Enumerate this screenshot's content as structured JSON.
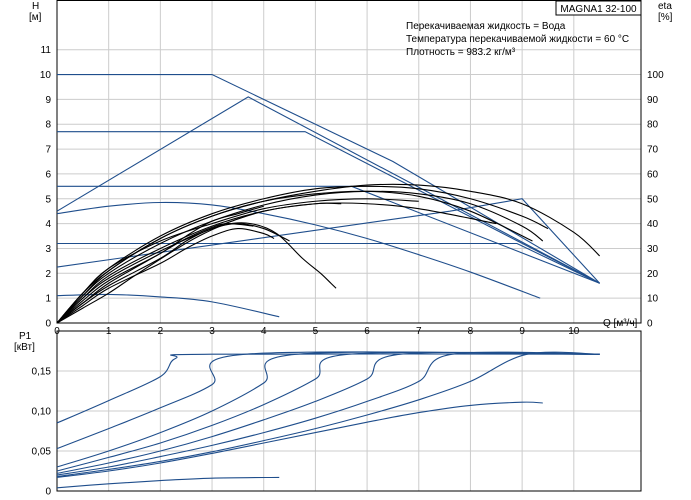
{
  "model_label": "MAGNA1 32-100",
  "info_lines": [
    "Перекачиваемая жидкость = Вода",
    "Температура перекачиваемой жидкости = 60 °C",
    "Плотность = 983.2 кг/м³"
  ],
  "colors": {
    "curve_blue": "#1f4e8c",
    "curve_black": "#000000",
    "grid": "#cccccc",
    "frame": "#000000"
  },
  "chart_data": [
    {
      "type": "line",
      "name": "head-and-efficiency",
      "xlabel": "Q [м³/ч]",
      "ylabel_left": [
        "H",
        "[м]"
      ],
      "ylabel_right": [
        "eta",
        "[%]"
      ],
      "xlim": [
        0,
        11.3
      ],
      "ylim": [
        0,
        13
      ],
      "ylim_right": [
        0,
        130
      ],
      "x_ticks": [
        0,
        1,
        2,
        3,
        4,
        5,
        6,
        7,
        8,
        9,
        10
      ],
      "x_tick_labels": [
        "0",
        "1",
        "2",
        "3",
        "4",
        "5",
        "6",
        "7",
        "8",
        "9",
        "10"
      ],
      "y_ticks": [
        0,
        1,
        2,
        3,
        4,
        5,
        6,
        7,
        8,
        9,
        10,
        11
      ],
      "y_tick_labels": [
        "0",
        "1",
        "2",
        "3",
        "4",
        "5",
        "6",
        "7",
        "8",
        "9",
        "10",
        "11"
      ],
      "y_right_ticks": [
        0,
        10,
        20,
        30,
        40,
        50,
        60,
        70,
        80,
        90,
        100
      ],
      "y_right_tick_labels": [
        "0",
        "10",
        "20",
        "30",
        "40",
        "50",
        "60",
        "70",
        "80",
        "90",
        "100"
      ],
      "grid": true,
      "head_series": [
        {
          "color": "blue",
          "points": [
            [
              0,
              10
            ],
            [
              3.0,
              10
            ],
            [
              6.5,
              6.5
            ],
            [
              10.5,
              1.6
            ]
          ]
        },
        {
          "color": "blue",
          "points": [
            [
              0,
              4.5
            ],
            [
              3.7,
              9.1
            ],
            [
              10.5,
              1.6
            ]
          ]
        },
        {
          "color": "blue",
          "points": [
            [
              0,
              7.7
            ],
            [
              4.8,
              7.7
            ],
            [
              10.5,
              1.6
            ]
          ]
        },
        {
          "color": "blue",
          "points": [
            [
              0,
              5.5
            ],
            [
              5.7,
              5.5
            ],
            [
              10.5,
              1.6
            ]
          ]
        },
        {
          "color": "blue",
          "points": [
            [
              0,
              3.2
            ],
            [
              8.9,
              3.2
            ],
            [
              10.5,
              1.6
            ]
          ]
        },
        {
          "color": "blue",
          "points": [
            [
              0,
              2.25
            ],
            [
              7.6,
              4.5
            ],
            [
              9.0,
              5.0
            ],
            [
              10.5,
              1.6
            ]
          ]
        },
        {
          "color": "blue",
          "points": [
            [
              0,
              4.4
            ],
            [
              1,
              4.7
            ],
            [
              2,
              4.85
            ],
            [
              3,
              4.75
            ],
            [
              4,
              4.4
            ],
            [
              5,
              3.95
            ],
            [
              6,
              3.4
            ],
            [
              7,
              2.75
            ],
            [
              8,
              2.05
            ],
            [
              9.35,
              1.0
            ]
          ]
        },
        {
          "color": "blue",
          "points": [
            [
              0,
              1.1
            ],
            [
              1,
              1.15
            ],
            [
              2,
              1.05
            ],
            [
              3,
              0.85
            ],
            [
              4.3,
              0.25
            ]
          ]
        }
      ],
      "efficiency_series": [
        {
          "color": "black",
          "points": [
            [
              0,
              0
            ],
            [
              0.5,
              12
            ],
            [
              1,
              21
            ],
            [
              2,
              34
            ],
            [
              3,
              43
            ],
            [
              4,
              49
            ],
            [
              5,
              53
            ],
            [
              6,
              55.5
            ],
            [
              7,
              55.5
            ],
            [
              8,
              53
            ],
            [
              9,
              48
            ],
            [
              10,
              36.5
            ],
            [
              10.5,
              27
            ]
          ]
        },
        {
          "color": "black",
          "points": [
            [
              0,
              0
            ],
            [
              0.5,
              11
            ],
            [
              1,
              20
            ],
            [
              2,
              32
            ],
            [
              3,
              41
            ],
            [
              4,
              47.5
            ],
            [
              5,
              51.5
            ],
            [
              6,
              53
            ],
            [
              7,
              52
            ],
            [
              8,
              48
            ],
            [
              9,
              39
            ],
            [
              9.4,
              33
            ]
          ]
        },
        {
          "color": "black",
          "points": [
            [
              0,
              0
            ],
            [
              0.5,
              12
            ],
            [
              1,
              22
            ],
            [
              2,
              35
            ],
            [
              3,
              44
            ],
            [
              4,
              50
            ],
            [
              5,
              54
            ],
            [
              6,
              55
            ],
            [
              7,
              54
            ],
            [
              8,
              50
            ],
            [
              9,
              43
            ],
            [
              9.5,
              38
            ]
          ]
        },
        {
          "color": "black",
          "points": [
            [
              0,
              0
            ],
            [
              0.5,
              11
            ],
            [
              1,
              21
            ],
            [
              2,
              34
            ],
            [
              3,
              43
            ],
            [
              4,
              49
            ],
            [
              5,
              52
            ],
            [
              6,
              53
            ],
            [
              7,
              51
            ],
            [
              8,
              45
            ],
            [
              9.2,
              33
            ]
          ]
        },
        {
          "color": "black",
          "points": [
            [
              0,
              0
            ],
            [
              0.5,
              10
            ],
            [
              1,
              19
            ],
            [
              2,
              30
            ],
            [
              3,
              39
            ],
            [
              4,
              45
            ],
            [
              5,
              48
            ],
            [
              6,
              48
            ],
            [
              7,
              46
            ],
            [
              8.5,
              40
            ]
          ]
        },
        {
          "color": "black",
          "points": [
            [
              0,
              0
            ],
            [
              0.5,
              12
            ],
            [
              1,
              22
            ],
            [
              2,
              33
            ],
            [
              3,
              40
            ],
            [
              4,
              46
            ],
            [
              5,
              49
            ],
            [
              6,
              50
            ],
            [
              7,
              49
            ]
          ]
        },
        {
          "color": "black",
          "points": [
            [
              0,
              0
            ],
            [
              0.5,
              10
            ],
            [
              1,
              18
            ],
            [
              2,
              29
            ],
            [
              3,
              38
            ],
            [
              4,
              45
            ],
            [
              5,
              48
            ],
            [
              5.5,
              48
            ]
          ]
        },
        {
          "color": "black",
          "points": [
            [
              0,
              0
            ],
            [
              0.5,
              9
            ],
            [
              1,
              17
            ],
            [
              2,
              28
            ],
            [
              2.5,
              35
            ],
            [
              3,
              41
            ],
            [
              3.5,
              44
            ],
            [
              4,
              47
            ]
          ]
        },
        {
          "color": "black",
          "points": [
            [
              0,
              0
            ],
            [
              0.5,
              8
            ],
            [
              1,
              16
            ],
            [
              2,
              28
            ],
            [
              2.5,
              34
            ],
            [
              3,
              38.5
            ],
            [
              3.3,
              40
            ],
            [
              3.8,
              39
            ]
          ]
        },
        {
          "color": "black",
          "points": [
            [
              0,
              0
            ],
            [
              0.5,
              8
            ],
            [
              1,
              15
            ],
            [
              2,
              26
            ],
            [
              2.5,
              33
            ],
            [
              3,
              38
            ],
            [
              3.5,
              40
            ],
            [
              4,
              38
            ],
            [
              4.5,
              33
            ]
          ]
        },
        {
          "color": "black",
          "points": [
            [
              0,
              0
            ],
            [
              0.5,
              7
            ],
            [
              1,
              14
            ],
            [
              2,
              24
            ],
            [
              2.5,
              30
            ],
            [
              3,
              35
            ],
            [
              3.5,
              38
            ],
            [
              4,
              36
            ],
            [
              4.2,
              34
            ]
          ]
        },
        {
          "color": "black",
          "points": [
            [
              0,
              0
            ],
            [
              0.5,
              6
            ],
            [
              1,
              12
            ],
            [
              1.5,
              19
            ],
            [
              2.25,
              29
            ],
            [
              2.75,
              35
            ],
            [
              3.25,
              39.5
            ],
            [
              3.75,
              40
            ],
            [
              4.25,
              36
            ],
            [
              4.75,
              26
            ],
            [
              5.1,
              20
            ],
            [
              5.3,
              16
            ],
            [
              5.4,
              14
            ]
          ]
        }
      ]
    },
    {
      "type": "line",
      "name": "power",
      "ylabel": [
        "P1",
        "[кВт]"
      ],
      "xlim": [
        0,
        11.3
      ],
      "ylim": [
        0,
        0.2
      ],
      "y_ticks": [
        0,
        0.05,
        0.1,
        0.15
      ],
      "y_tick_labels": [
        "0",
        "0,05",
        "0,10",
        "0,15"
      ],
      "grid": true,
      "series": [
        {
          "color": "blue",
          "points": [
            [
              0,
              0.085
            ],
            [
              1,
              0.113
            ],
            [
              2,
              0.143
            ],
            [
              2.3,
              0.166
            ],
            [
              3,
              0.171
            ],
            [
              10.5,
              0.171
            ]
          ]
        },
        {
          "color": "blue",
          "points": [
            [
              0,
              0.053
            ],
            [
              1,
              0.078
            ],
            [
              2,
              0.104
            ],
            [
              3,
              0.133
            ],
            [
              3.65,
              0.171
            ],
            [
              10.5,
              0.171
            ]
          ]
        },
        {
          "color": "blue",
          "points": [
            [
              0,
              0.03
            ],
            [
              1,
              0.05
            ],
            [
              2,
              0.073
            ],
            [
              3,
              0.1
            ],
            [
              4,
              0.135
            ],
            [
              4.65,
              0.171
            ],
            [
              10.5,
              0.171
            ]
          ]
        },
        {
          "color": "blue",
          "points": [
            [
              0,
              0.025
            ],
            [
              1,
              0.042
            ],
            [
              2,
              0.06
            ],
            [
              3,
              0.082
            ],
            [
              4,
              0.108
            ],
            [
              5,
              0.14
            ],
            [
              5.65,
              0.171
            ],
            [
              10.5,
              0.171
            ]
          ]
        },
        {
          "color": "blue",
          "points": [
            [
              0,
              0.022
            ],
            [
              1,
              0.035
            ],
            [
              2,
              0.05
            ],
            [
              3,
              0.068
            ],
            [
              4,
              0.089
            ],
            [
              5,
              0.112
            ],
            [
              6,
              0.14
            ],
            [
              6.65,
              0.171
            ],
            [
              10.5,
              0.171
            ]
          ]
        },
        {
          "color": "blue",
          "points": [
            [
              0,
              0.02
            ],
            [
              1,
              0.03
            ],
            [
              2,
              0.043
            ],
            [
              3,
              0.057
            ],
            [
              4,
              0.073
            ],
            [
              5,
              0.091
            ],
            [
              6,
              0.112
            ],
            [
              7,
              0.137
            ],
            [
              7.65,
              0.171
            ],
            [
              10.5,
              0.171
            ]
          ]
        },
        {
          "color": "blue",
          "points": [
            [
              0,
              0.018
            ],
            [
              1,
              0.027
            ],
            [
              2,
              0.037
            ],
            [
              3,
              0.049
            ],
            [
              4,
              0.063
            ],
            [
              5,
              0.078
            ],
            [
              6,
              0.095
            ],
            [
              7,
              0.114
            ],
            [
              8,
              0.137
            ],
            [
              9.1,
              0.171
            ],
            [
              10.5,
              0.171
            ]
          ]
        },
        {
          "color": "blue",
          "points": [
            [
              0,
              0.017
            ],
            [
              1,
              0.025
            ],
            [
              2,
              0.035
            ],
            [
              3,
              0.047
            ],
            [
              4,
              0.06
            ],
            [
              5,
              0.073
            ],
            [
              6,
              0.086
            ],
            [
              7,
              0.098
            ],
            [
              8,
              0.107
            ],
            [
              9,
              0.111
            ],
            [
              9.4,
              0.11
            ]
          ]
        },
        {
          "color": "blue",
          "points": [
            [
              0,
              0.004
            ],
            [
              1,
              0.009
            ],
            [
              2,
              0.013
            ],
            [
              3,
              0.016
            ],
            [
              4.3,
              0.017
            ]
          ]
        }
      ]
    }
  ]
}
